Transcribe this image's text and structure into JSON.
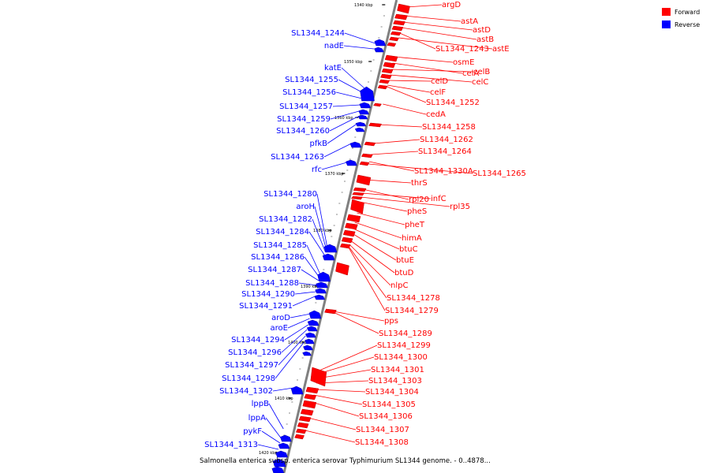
{
  "caption": "Salmonella enterica subsp. enterica serovar Typhimurium SL1344 genome. - 0..4878...",
  "legend": [
    {
      "label": "Forward",
      "color": "#ff0000"
    },
    {
      "label": "Reverse",
      "color": "#0000ff"
    }
  ],
  "colors": {
    "forward": "#ff0000",
    "reverse": "#0000ff",
    "backbone": "#808080"
  },
  "ticks": [
    "1340 kbp",
    "1350 kbp",
    "1360 kbp",
    "1370 kbp",
    "1380 kbp",
    "1390 kbp",
    "1400 kbp",
    "1410 kbp",
    "1420 kbp"
  ],
  "forward_genes": [
    "argD",
    "astA",
    "astD",
    "astB",
    "SL1344_1243",
    "astE",
    "osmE",
    "celA",
    "celB",
    "celC",
    "celD",
    "celF",
    "SL1344_1252",
    "cedA",
    "SL1344_1258",
    "SL1344_1262",
    "SL1344_1264",
    "SL1344_1330A",
    "SL1344_1265",
    "thrS",
    "rpl20",
    "infC",
    "rpl35",
    "pheS",
    "pheT",
    "himA",
    "btuC",
    "btuE",
    "btuD",
    "nlpC",
    "SL1344_1278",
    "SL1344_1279",
    "pps",
    "SL1344_1289",
    "SL1344_1299",
    "SL1344_1300",
    "SL1344_1301",
    "SL1344_1303",
    "SL1344_1304",
    "SL1344_1305",
    "SL1344_1306",
    "SL1344_1307",
    "SL1344_1308"
  ],
  "reverse_genes": [
    "SL1344_1244",
    "nadE",
    "katE",
    "SL1344_1255",
    "SL1344_1256",
    "SL1344_1257",
    "SL1344_1259",
    "SL1344_1260",
    "pfkB",
    "SL1344_1263",
    "rfc",
    "SL1344_1280",
    "aroH",
    "SL1344_1282",
    "SL1344_1284",
    "SL1344_1285",
    "SL1344_1286",
    "SL1344_1287",
    "SL1344_1288",
    "SL1344_1290",
    "SL1344_1291",
    "aroD",
    "aroE",
    "SL1344_1294",
    "SL1344_1296",
    "SL1344_1297",
    "SL1344_1298",
    "SL1344_1302",
    "lppB",
    "lppA",
    "pykF",
    "SL1344_1313"
  ]
}
